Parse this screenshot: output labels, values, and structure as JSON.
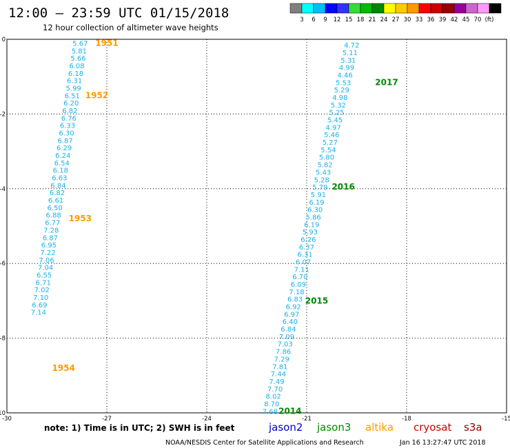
{
  "header": {
    "title": "12:00 – 23:59 UTC 01/15/2018",
    "subtitle": "12 hour collection of altimeter wave heights"
  },
  "colorbar": {
    "colors": [
      "#7f7f7f",
      "#00ffff",
      "#00bfff",
      "#0000ff",
      "#3333ff",
      "#33dd33",
      "#00bb00",
      "#008800",
      "#ffff00",
      "#ffcc00",
      "#ff9900",
      "#ff0000",
      "#cc0000",
      "#990000",
      "#990099",
      "#cc66cc",
      "#ff99ff",
      "#000000"
    ],
    "labels": [
      "3",
      "6",
      "9",
      "12",
      "15",
      "18",
      "21",
      "24",
      "27",
      "30",
      "33",
      "36",
      "39",
      "42",
      "45",
      "70",
      "(ft)"
    ]
  },
  "notes": {
    "text": "note:  1) Time is in UTC;  2) SWH is in feet",
    "footer_left": "NOAA/NESDIS Center for Satellite Applications and Research",
    "footer_right": "Jan 16 13:27:47 UTC 2018"
  },
  "satellites": [
    {
      "name": "jason2",
      "color": "#0000cc"
    },
    {
      "name": "jason3",
      "color": "#008800"
    },
    {
      "name": "altika",
      "color": "#ff9900"
    },
    {
      "name": "cryosat",
      "color": "#cc0000"
    },
    {
      "name": "s3a",
      "color": "#880000"
    }
  ],
  "chart_data": {
    "type": "scatter",
    "xlim": [
      -30,
      -15
    ],
    "ylim": [
      0,
      -10
    ],
    "xticks": [
      "-30",
      "-27",
      "-24",
      "-21",
      "-18",
      "-15"
    ],
    "yticks": [
      "0",
      "-2",
      "-4",
      "-6",
      "-8",
      "-10"
    ],
    "grid": true,
    "point_color": "#1ab0e8",
    "passes": [
      {
        "satellite": "altika",
        "color": "#ff9900",
        "points": [
          {
            "x": -27.8,
            "y": -0.1,
            "v": "5.67"
          },
          {
            "x": -27.83,
            "y": -0.3,
            "v": "5.81"
          },
          {
            "x": -27.86,
            "y": -0.5,
            "v": "5.66"
          },
          {
            "x": -27.9,
            "y": -0.7,
            "v": "6.08"
          },
          {
            "x": -27.93,
            "y": -0.9,
            "v": "6.18"
          },
          {
            "x": -27.97,
            "y": -1.1,
            "v": "6.31"
          },
          {
            "x": -28.0,
            "y": -1.3,
            "v": "5.99"
          },
          {
            "x": -28.04,
            "y": -1.5,
            "v": "6.51"
          },
          {
            "x": -28.07,
            "y": -1.7,
            "v": "6.20"
          },
          {
            "x": -28.11,
            "y": -1.9,
            "v": "6.82"
          },
          {
            "x": -28.14,
            "y": -2.1,
            "v": "6.76"
          },
          {
            "x": -28.18,
            "y": -2.3,
            "v": "6.33"
          },
          {
            "x": -28.21,
            "y": -2.5,
            "v": "6.30"
          },
          {
            "x": -28.25,
            "y": -2.7,
            "v": "6.87"
          },
          {
            "x": -28.28,
            "y": -2.9,
            "v": "6.29"
          },
          {
            "x": -28.32,
            "y": -3.1,
            "v": "6.24"
          },
          {
            "x": -28.35,
            "y": -3.3,
            "v": "6.54"
          },
          {
            "x": -28.39,
            "y": -3.5,
            "v": "6.18"
          },
          {
            "x": -28.42,
            "y": -3.7,
            "v": "6.63"
          },
          {
            "x": -28.46,
            "y": -3.9,
            "v": "6.84"
          },
          {
            "x": -28.49,
            "y": -4.1,
            "v": "6.82"
          },
          {
            "x": -28.53,
            "y": -4.3,
            "v": "6.61"
          },
          {
            "x": -28.56,
            "y": -4.5,
            "v": "6.50"
          },
          {
            "x": -28.6,
            "y": -4.7,
            "v": "6.88"
          },
          {
            "x": -28.63,
            "y": -4.9,
            "v": "6.77"
          },
          {
            "x": -28.67,
            "y": -5.1,
            "v": "7.28"
          },
          {
            "x": -28.7,
            "y": -5.3,
            "v": "6.87"
          },
          {
            "x": -28.74,
            "y": -5.5,
            "v": "6.95"
          },
          {
            "x": -28.77,
            "y": -5.7,
            "v": "7.22"
          },
          {
            "x": -28.81,
            "y": -5.9,
            "v": "7.06"
          },
          {
            "x": -28.84,
            "y": -6.1,
            "v": "7.04"
          },
          {
            "x": -28.88,
            "y": -6.3,
            "v": "6.55"
          },
          {
            "x": -28.91,
            "y": -6.5,
            "v": "6.71"
          },
          {
            "x": -28.95,
            "y": -6.7,
            "v": "7.02"
          },
          {
            "x": -28.98,
            "y": -6.9,
            "v": "7.10"
          },
          {
            "x": -29.02,
            "y": -7.1,
            "v": "6.69"
          },
          {
            "x": -29.05,
            "y": -7.3,
            "v": "7.14"
          }
        ],
        "labels": [
          {
            "x": -27.0,
            "y": -0.1,
            "t": "1951"
          },
          {
            "x": -27.3,
            "y": -1.5,
            "t": "1952"
          },
          {
            "x": -27.8,
            "y": -4.8,
            "t": "1953"
          },
          {
            "x": -28.3,
            "y": -8.8,
            "t": "1954"
          }
        ]
      },
      {
        "satellite": "jason3",
        "color": "#008800",
        "points": [
          {
            "x": -19.65,
            "y": -0.15,
            "v": "4.72"
          },
          {
            "x": -19.7,
            "y": -0.35,
            "v": "5.11"
          },
          {
            "x": -19.75,
            "y": -0.55,
            "v": "5.31"
          },
          {
            "x": -19.8,
            "y": -0.75,
            "v": "4.99"
          },
          {
            "x": -19.85,
            "y": -0.95,
            "v": "4.46"
          },
          {
            "x": -19.9,
            "y": -1.15,
            "v": "5.53"
          },
          {
            "x": -19.95,
            "y": -1.35,
            "v": "5.29"
          },
          {
            "x": -20.0,
            "y": -1.55,
            "v": "4.98"
          },
          {
            "x": -20.05,
            "y": -1.75,
            "v": "5.32"
          },
          {
            "x": -20.1,
            "y": -1.95,
            "v": "5.25"
          },
          {
            "x": -20.15,
            "y": -2.15,
            "v": "5.45"
          },
          {
            "x": -20.2,
            "y": -2.35,
            "v": "4.97"
          },
          {
            "x": -20.25,
            "y": -2.55,
            "v": "5.46"
          },
          {
            "x": -20.3,
            "y": -2.75,
            "v": "5.27"
          },
          {
            "x": -20.35,
            "y": -2.95,
            "v": "5.54"
          },
          {
            "x": -20.4,
            "y": -3.15,
            "v": "5.80"
          },
          {
            "x": -20.45,
            "y": -3.35,
            "v": "5.82"
          },
          {
            "x": -20.5,
            "y": -3.55,
            "v": "5.43"
          },
          {
            "x": -20.55,
            "y": -3.75,
            "v": "5.28"
          },
          {
            "x": -20.6,
            "y": -3.95,
            "v": "5.79"
          },
          {
            "x": -20.65,
            "y": -4.15,
            "v": "5.91"
          },
          {
            "x": -20.7,
            "y": -4.35,
            "v": "6.19"
          },
          {
            "x": -20.75,
            "y": -4.55,
            "v": "6.30"
          },
          {
            "x": -20.8,
            "y": -4.75,
            "v": "5.86"
          },
          {
            "x": -20.85,
            "y": -4.95,
            "v": "6.19"
          },
          {
            "x": -20.9,
            "y": -5.15,
            "v": "5.93"
          },
          {
            "x": -20.95,
            "y": -5.35,
            "v": "6.26"
          },
          {
            "x": -21.0,
            "y": -5.55,
            "v": "6.37"
          },
          {
            "x": -21.05,
            "y": -5.75,
            "v": "6.31"
          },
          {
            "x": -21.1,
            "y": -5.95,
            "v": "6.07"
          },
          {
            "x": -21.15,
            "y": -6.15,
            "v": "7.11"
          },
          {
            "x": -21.2,
            "y": -6.35,
            "v": "6.70"
          },
          {
            "x": -21.25,
            "y": -6.55,
            "v": "6.09"
          },
          {
            "x": -21.3,
            "y": -6.75,
            "v": "7.18"
          },
          {
            "x": -21.35,
            "y": -6.95,
            "v": "6.83"
          },
          {
            "x": -21.4,
            "y": -7.15,
            "v": "6.92"
          },
          {
            "x": -21.45,
            "y": -7.35,
            "v": "6.97"
          },
          {
            "x": -21.5,
            "y": -7.55,
            "v": "6.40"
          },
          {
            "x": -21.55,
            "y": -7.75,
            "v": "6.84"
          },
          {
            "x": -21.6,
            "y": -7.95,
            "v": "7.09"
          },
          {
            "x": -21.65,
            "y": -8.15,
            "v": "7.03"
          },
          {
            "x": -21.7,
            "y": -8.35,
            "v": "7.86"
          },
          {
            "x": -21.75,
            "y": -8.55,
            "v": "7.29"
          },
          {
            "x": -21.8,
            "y": -8.75,
            "v": "7.81"
          },
          {
            "x": -21.85,
            "y": -8.95,
            "v": "7.44"
          },
          {
            "x": -21.9,
            "y": -9.15,
            "v": "7.49"
          },
          {
            "x": -21.95,
            "y": -9.35,
            "v": "7.70"
          },
          {
            "x": -22.0,
            "y": -9.55,
            "v": "8.02"
          },
          {
            "x": -22.05,
            "y": -9.75,
            "v": "8.70"
          },
          {
            "x": -22.1,
            "y": -9.95,
            "v": "7.68"
          }
        ],
        "labels": [
          {
            "x": -18.6,
            "y": -1.15,
            "t": "2017"
          },
          {
            "x": -19.9,
            "y": -3.95,
            "t": "2016"
          },
          {
            "x": -20.7,
            "y": -7.0,
            "t": "2015"
          },
          {
            "x": -21.5,
            "y": -9.95,
            "t": "2014"
          }
        ]
      }
    ]
  }
}
